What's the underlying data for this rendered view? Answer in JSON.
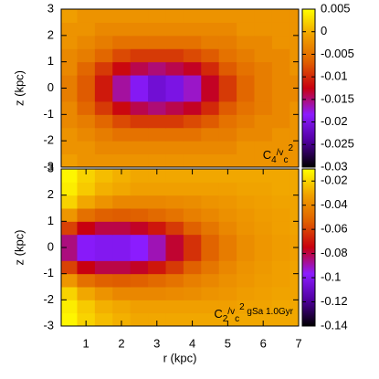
{
  "chart_data": [
    {
      "type": "heatmap",
      "ylabel": "z (kpc)",
      "annotation": [
        "C",
        "4",
        "/v",
        "c",
        "2"
      ],
      "x": [
        0.3,
        0.75,
        1.25,
        1.75,
        2.25,
        2.75,
        3.25,
        3.75,
        4.25,
        4.75,
        5.25,
        5.75,
        6.25,
        6.75,
        7
      ],
      "y": [
        -3,
        -2.5,
        -2,
        -1.5,
        -1,
        -0.5,
        0,
        0.5,
        1,
        1.5,
        2,
        2.5,
        3
      ],
      "xlim": [
        0.3,
        7
      ],
      "ylim": [
        -3,
        3
      ],
      "yticks": [
        -3,
        -2,
        -1,
        0,
        1,
        2,
        3
      ],
      "clim": [
        -0.03,
        0.005
      ],
      "cticks": [
        -0.03,
        -0.025,
        -0.02,
        -0.015,
        -0.01,
        -0.005,
        0,
        0.005
      ],
      "colormap": [
        "#000000",
        "#5000a0",
        "#8c1cff",
        "#c80010",
        "#e06000",
        "#f0a000",
        "#ffff00"
      ],
      "values": [
        [
          -0.001,
          -0.002,
          -0.002,
          -0.002,
          -0.002,
          -0.002,
          -0.002,
          -0.002,
          -0.002,
          -0.002,
          -0.002,
          -0.002,
          -0.002,
          -0.002
        ],
        [
          -0.002,
          -0.002,
          -0.003,
          -0.003,
          -0.003,
          -0.003,
          -0.003,
          -0.003,
          -0.003,
          -0.003,
          -0.002,
          -0.002,
          -0.002,
          -0.002
        ],
        [
          -0.002,
          -0.003,
          -0.004,
          -0.005,
          -0.005,
          -0.005,
          -0.005,
          -0.005,
          -0.004,
          -0.004,
          -0.003,
          -0.003,
          -0.002,
          -0.002
        ],
        [
          -0.003,
          -0.004,
          -0.006,
          -0.008,
          -0.009,
          -0.009,
          -0.009,
          -0.008,
          -0.007,
          -0.005,
          -0.004,
          -0.003,
          -0.003,
          -0.002
        ],
        [
          -0.003,
          -0.006,
          -0.009,
          -0.012,
          -0.014,
          -0.015,
          -0.014,
          -0.013,
          -0.01,
          -0.007,
          -0.005,
          -0.004,
          -0.003,
          -0.002
        ],
        [
          -0.004,
          -0.007,
          -0.011,
          -0.016,
          -0.019,
          -0.021,
          -0.02,
          -0.017,
          -0.013,
          -0.009,
          -0.006,
          -0.004,
          -0.003,
          -0.003
        ],
        [
          -0.004,
          -0.007,
          -0.011,
          -0.016,
          -0.019,
          -0.021,
          -0.02,
          -0.017,
          -0.013,
          -0.009,
          -0.006,
          -0.004,
          -0.003,
          -0.003
        ],
        [
          -0.003,
          -0.006,
          -0.009,
          -0.012,
          -0.014,
          -0.015,
          -0.014,
          -0.013,
          -0.01,
          -0.007,
          -0.005,
          -0.004,
          -0.003,
          -0.002
        ],
        [
          -0.003,
          -0.004,
          -0.006,
          -0.008,
          -0.009,
          -0.009,
          -0.009,
          -0.008,
          -0.007,
          -0.005,
          -0.004,
          -0.003,
          -0.003,
          -0.002
        ],
        [
          -0.002,
          -0.003,
          -0.004,
          -0.005,
          -0.005,
          -0.005,
          -0.005,
          -0.005,
          -0.004,
          -0.004,
          -0.003,
          -0.003,
          -0.002,
          -0.002
        ],
        [
          -0.002,
          -0.002,
          -0.003,
          -0.003,
          -0.003,
          -0.003,
          -0.003,
          -0.003,
          -0.003,
          -0.003,
          -0.002,
          -0.002,
          -0.002,
          -0.002
        ],
        [
          -0.001,
          -0.002,
          -0.002,
          -0.002,
          -0.002,
          -0.002,
          -0.002,
          -0.002,
          -0.002,
          -0.002,
          -0.002,
          -0.002,
          -0.002,
          -0.002
        ]
      ]
    },
    {
      "type": "heatmap",
      "ylabel": "z (kpc)",
      "xlabel": "r (kpc)",
      "annotation": [
        "C",
        "2",
        "/v",
        "c",
        "2",
        " gSa 1.0Gyr"
      ],
      "x": [
        0.3,
        0.75,
        1.25,
        1.75,
        2.25,
        2.75,
        3.25,
        3.75,
        4.25,
        4.75,
        5.25,
        5.75,
        6.25,
        6.75,
        7
      ],
      "y": [
        -3,
        -2.5,
        -2,
        -1.5,
        -1,
        -0.5,
        0,
        0.5,
        1,
        1.5,
        2,
        2.5,
        3
      ],
      "xlim": [
        0.3,
        7
      ],
      "ylim": [
        -3,
        3
      ],
      "xticks": [
        1,
        2,
        3,
        4,
        5,
        6,
        7
      ],
      "yticks": [
        -3,
        -2,
        -1,
        0,
        1,
        2,
        3
      ],
      "clim": [
        -0.14,
        -0.01
      ],
      "cticks": [
        -0.14,
        -0.12,
        -0.1,
        -0.08,
        -0.06,
        -0.04,
        -0.02
      ],
      "colormap": [
        "#000000",
        "#5000a0",
        "#8c1cff",
        "#c80010",
        "#e06000",
        "#f0a000",
        "#ffff00"
      ],
      "values": [
        [
          -0.012,
          -0.02,
          -0.025,
          -0.028,
          -0.03,
          -0.03,
          -0.03,
          -0.03,
          -0.03,
          -0.03,
          -0.03,
          -0.03,
          -0.03,
          -0.03
        ],
        [
          -0.014,
          -0.022,
          -0.028,
          -0.03,
          -0.032,
          -0.032,
          -0.032,
          -0.032,
          -0.032,
          -0.032,
          -0.031,
          -0.031,
          -0.03,
          -0.03
        ],
        [
          -0.02,
          -0.03,
          -0.036,
          -0.04,
          -0.04,
          -0.04,
          -0.039,
          -0.038,
          -0.036,
          -0.035,
          -0.033,
          -0.032,
          -0.031,
          -0.031
        ],
        [
          -0.035,
          -0.048,
          -0.053,
          -0.054,
          -0.053,
          -0.05,
          -0.047,
          -0.043,
          -0.04,
          -0.037,
          -0.035,
          -0.033,
          -0.032,
          -0.031
        ],
        [
          -0.06,
          -0.075,
          -0.08,
          -0.08,
          -0.077,
          -0.07,
          -0.062,
          -0.053,
          -0.046,
          -0.04,
          -0.036,
          -0.034,
          -0.032,
          -0.031
        ],
        [
          -0.085,
          -0.098,
          -0.1,
          -0.1,
          -0.097,
          -0.09,
          -0.078,
          -0.064,
          -0.052,
          -0.044,
          -0.038,
          -0.035,
          -0.033,
          -0.032
        ],
        [
          -0.085,
          -0.098,
          -0.1,
          -0.1,
          -0.097,
          -0.09,
          -0.078,
          -0.064,
          -0.052,
          -0.044,
          -0.038,
          -0.035,
          -0.033,
          -0.032
        ],
        [
          -0.06,
          -0.075,
          -0.08,
          -0.08,
          -0.077,
          -0.07,
          -0.062,
          -0.053,
          -0.046,
          -0.04,
          -0.036,
          -0.034,
          -0.032,
          -0.031
        ],
        [
          -0.035,
          -0.048,
          -0.053,
          -0.054,
          -0.053,
          -0.05,
          -0.047,
          -0.043,
          -0.04,
          -0.037,
          -0.035,
          -0.033,
          -0.032,
          -0.031
        ],
        [
          -0.02,
          -0.03,
          -0.036,
          -0.04,
          -0.04,
          -0.04,
          -0.039,
          -0.038,
          -0.036,
          -0.035,
          -0.033,
          -0.032,
          -0.031,
          -0.031
        ],
        [
          -0.014,
          -0.022,
          -0.028,
          -0.03,
          -0.032,
          -0.032,
          -0.032,
          -0.032,
          -0.032,
          -0.032,
          -0.031,
          -0.031,
          -0.03,
          -0.03
        ],
        [
          -0.012,
          -0.02,
          -0.025,
          -0.028,
          -0.03,
          -0.03,
          -0.03,
          -0.03,
          -0.03,
          -0.03,
          -0.03,
          -0.03,
          -0.03,
          -0.03
        ]
      ]
    }
  ]
}
